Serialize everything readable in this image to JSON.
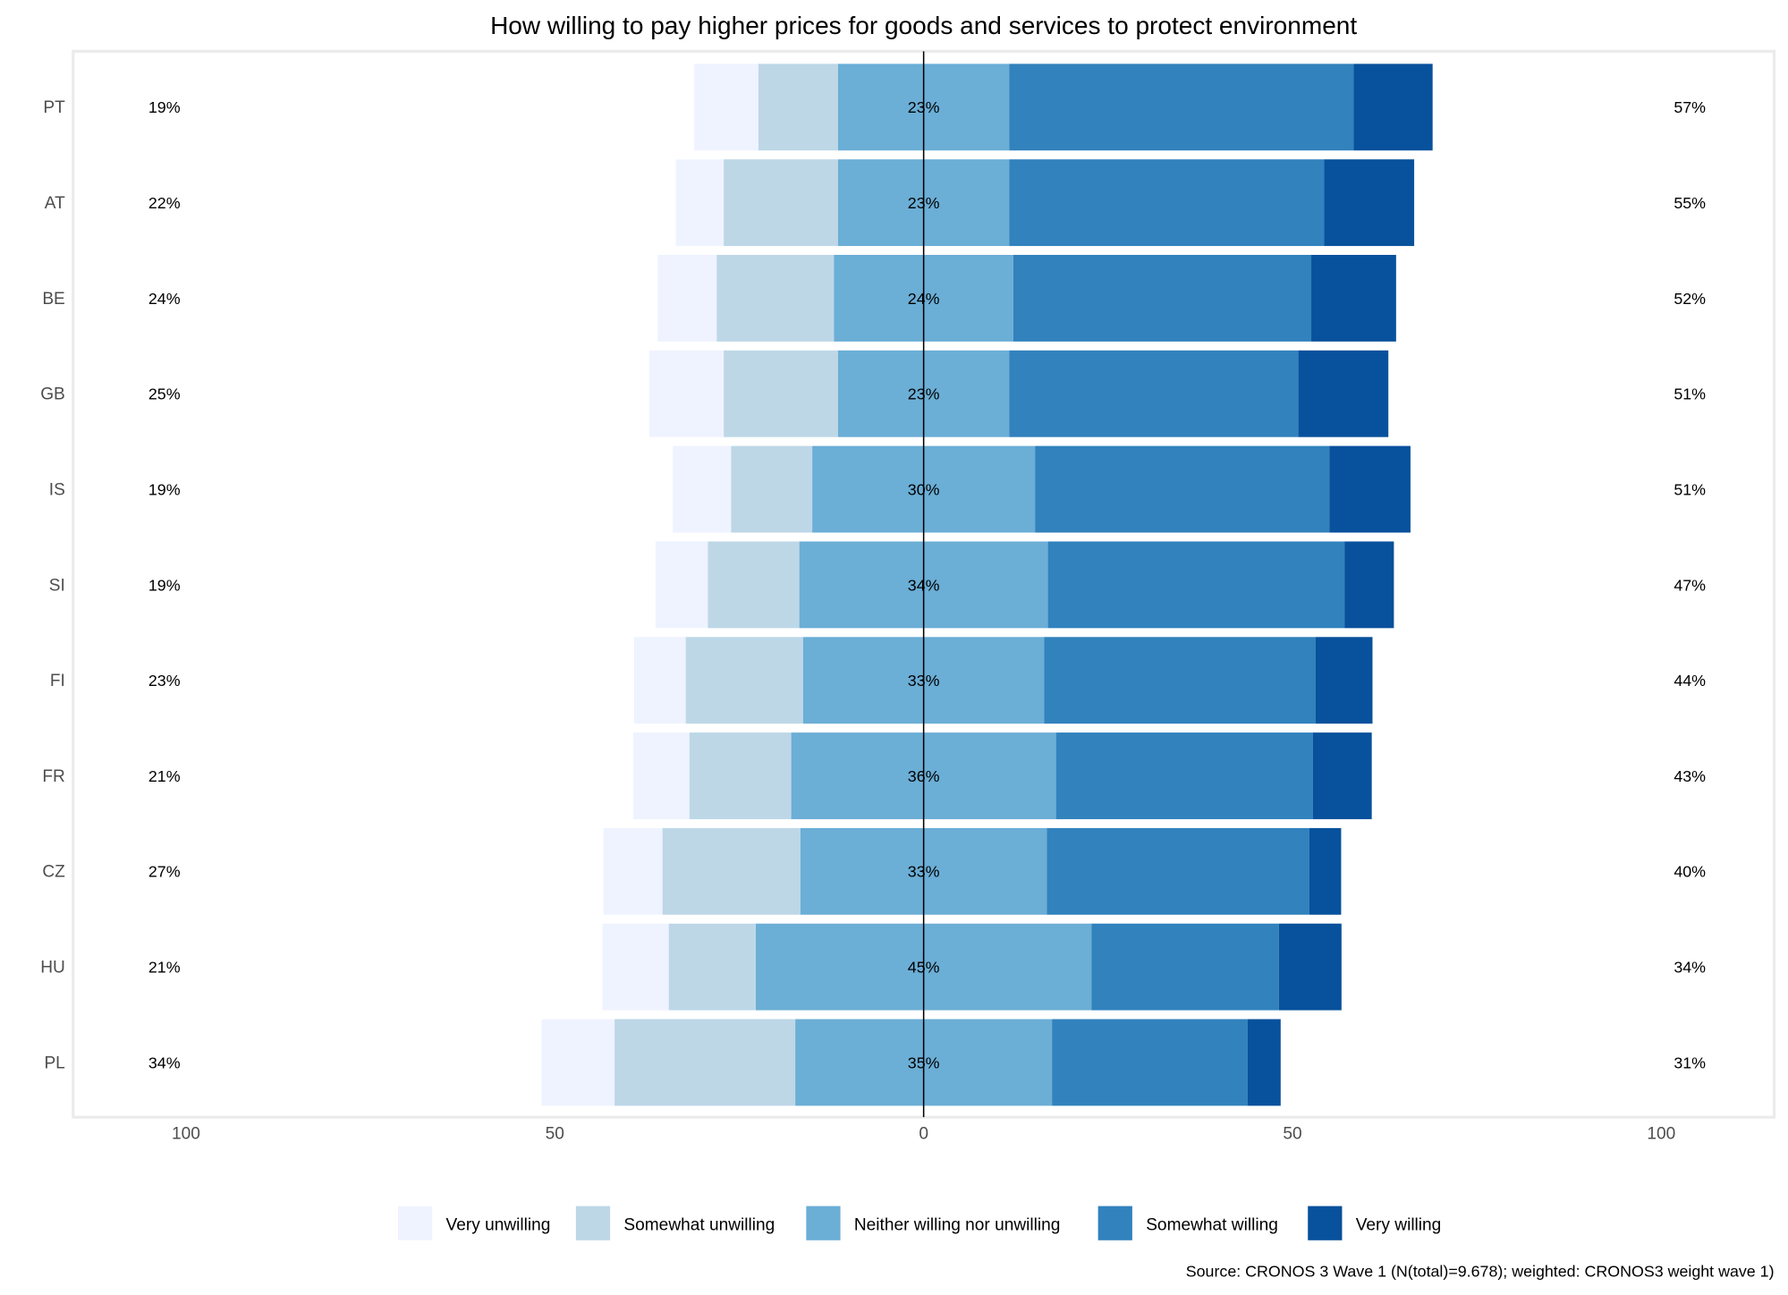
{
  "chart_data": {
    "type": "bar",
    "subtype": "diverging-stacked-horizontal",
    "title": "How willing to pay higher prices for goods and services to protect environment",
    "source": "Source: CRONOS 3 Wave 1 (N(total)=9.678); weighted: CRONOS3 weight wave 1)",
    "xlim": [
      -100,
      100
    ],
    "xticks": [
      -100,
      -50,
      0,
      50,
      100
    ],
    "xtick_labels": [
      "100",
      "50",
      "0",
      "50",
      "100"
    ],
    "legend_position": "bottom",
    "series": [
      {
        "name": "Very unwilling",
        "color": "#eff3ff"
      },
      {
        "name": "Somewhat unwilling",
        "color": "#bdd7e7"
      },
      {
        "name": "Neither willing nor unwilling",
        "color": "#6baed6"
      },
      {
        "name": "Somewhat willing",
        "color": "#3182bd"
      },
      {
        "name": "Very willing",
        "color": "#08519c"
      }
    ],
    "categories": [
      "PT",
      "AT",
      "BE",
      "GB",
      "IS",
      "SI",
      "FI",
      "FR",
      "CZ",
      "HU",
      "PL"
    ],
    "rows": [
      {
        "country": "PT",
        "values": [
          8.7,
          10.8,
          23.2,
          46.7,
          10.7
        ],
        "left_label": "19%",
        "mid_label": "23%",
        "right_label": "57%"
      },
      {
        "country": "AT",
        "values": [
          6.5,
          15.5,
          23.2,
          42.7,
          12.2
        ],
        "left_label": "22%",
        "mid_label": "23%",
        "right_label": "55%"
      },
      {
        "country": "BE",
        "values": [
          8.0,
          15.9,
          24.3,
          40.4,
          11.5
        ],
        "left_label": "24%",
        "mid_label": "24%",
        "right_label": "52%"
      },
      {
        "country": "GB",
        "values": [
          10.1,
          15.5,
          23.2,
          39.2,
          12.2
        ],
        "left_label": "25%",
        "mid_label": "23%",
        "right_label": "51%"
      },
      {
        "country": "IS",
        "values": [
          7.9,
          11.0,
          30.2,
          39.9,
          11.0
        ],
        "left_label": "19%",
        "mid_label": "30%",
        "right_label": "51%"
      },
      {
        "country": "SI",
        "values": [
          7.1,
          12.4,
          33.7,
          40.2,
          6.7
        ],
        "left_label": "19%",
        "mid_label": "34%",
        "right_label": "47%"
      },
      {
        "country": "FI",
        "values": [
          7.0,
          15.9,
          32.7,
          36.8,
          7.7
        ],
        "left_label": "23%",
        "mid_label": "33%",
        "right_label": "44%"
      },
      {
        "country": "FR",
        "values": [
          7.6,
          13.8,
          35.9,
          34.8,
          8.0
        ],
        "left_label": "21%",
        "mid_label": "36%",
        "right_label": "43%"
      },
      {
        "country": "CZ",
        "values": [
          8.0,
          18.7,
          33.4,
          35.6,
          4.3
        ],
        "left_label": "27%",
        "mid_label": "33%",
        "right_label": "40%"
      },
      {
        "country": "HU",
        "values": [
          9.0,
          11.8,
          45.5,
          25.4,
          8.5
        ],
        "left_label": "21%",
        "mid_label": "45%",
        "right_label": "34%"
      },
      {
        "country": "PL",
        "values": [
          9.9,
          24.5,
          34.8,
          26.5,
          4.5
        ],
        "left_label": "34%",
        "mid_label": "35%",
        "right_label": "31%"
      }
    ]
  }
}
